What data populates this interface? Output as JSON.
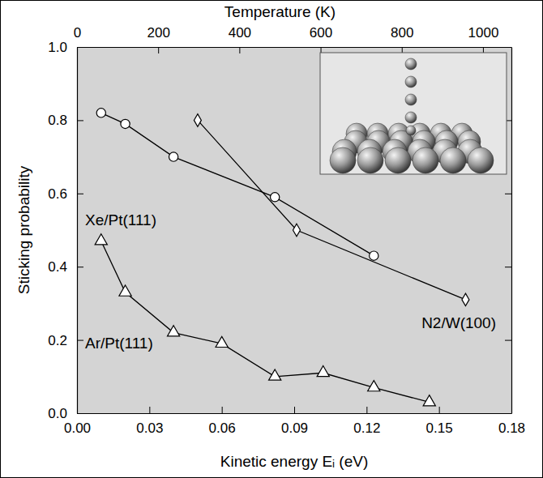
{
  "chart_data": {
    "type": "line",
    "x_label": "Kinetic energy Eᵢ (eV)",
    "y_label": "Sticking probability",
    "x2_label": "Temperature (K)",
    "xlim": [
      0,
      0.18
    ],
    "xticks": [
      {
        "value": 0,
        "label": "0.00"
      },
      0.03,
      0.06,
      0.09,
      0.12,
      0.15,
      0.18
    ],
    "ylim": [
      0,
      1
    ],
    "yticks": [
      {
        "value": 0,
        "label": "0.0"
      },
      0.2,
      0.4,
      0.6,
      0.8,
      {
        "value": 1,
        "label": "1.0"
      }
    ],
    "x2lim": [
      0,
      1070
    ],
    "x2ticks": [
      0,
      200,
      400,
      600,
      800,
      1000
    ],
    "grid": false,
    "series": [
      {
        "name": "Xe/Pt(111)",
        "color": "#000000",
        "marker": "circle",
        "line_style": "solid",
        "x": [
          0.01,
          0.02,
          0.04,
          0.082,
          0.123
        ],
        "values": [
          0.82,
          0.79,
          0.7,
          0.59,
          0.43
        ]
      },
      {
        "name": "N2/W(100)",
        "color": "#000000",
        "marker": "diamond",
        "line_style": "solid",
        "x": [
          0.05,
          0.091,
          0.161
        ],
        "values": [
          0.8,
          0.5,
          0.31
        ]
      },
      {
        "name": "Ar/Pt(111)",
        "color": "#000000",
        "marker": "triangle",
        "line_style": "solid",
        "x": [
          0.01,
          0.02,
          0.04,
          0.06,
          0.082,
          0.102,
          0.123,
          0.146
        ],
        "values": [
          0.47,
          0.33,
          0.22,
          0.19,
          0.1,
          0.11,
          0.07,
          0.03
        ]
      }
    ]
  }
}
